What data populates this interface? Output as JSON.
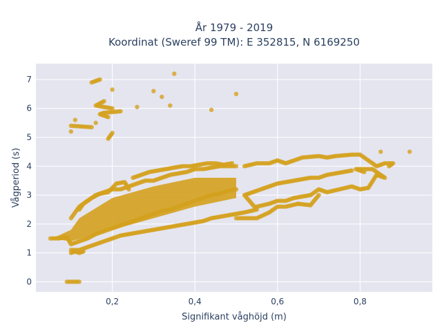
{
  "chart_data": {
    "type": "scatter",
    "title": "År 1979 - 2019",
    "subtitle": "Koordinat (Sweref 99 TM): E 352815, N 6169250",
    "xlabel": "Signifikant våghöjd (m)",
    "ylabel": "Vågperiod (s)",
    "xlim": [
      0.015,
      0.975
    ],
    "ylim": [
      -0.35,
      7.55
    ],
    "x_ticks": [
      0.2,
      0.4,
      0.6,
      0.8
    ],
    "x_tick_labels": [
      "0,2",
      "0,4",
      "0,6",
      "0,8"
    ],
    "y_ticks": [
      0,
      1,
      2,
      3,
      4,
      5,
      6,
      7
    ],
    "y_tick_labels": [
      "0",
      "1",
      "2",
      "3",
      "4",
      "5",
      "6",
      "7"
    ],
    "grid": true,
    "colors": {
      "marker": "#d4a11e",
      "plot_bg": "#e5e5f0",
      "grid": "#ffffff"
    },
    "series": [
      {
        "points": [
          [
            0.05,
            1.5
          ],
          [
            0.07,
            1.5
          ],
          [
            0.09,
            1.55
          ],
          [
            0.1,
            1.3
          ],
          [
            0.12,
            1.4
          ],
          [
            0.14,
            1.5
          ],
          [
            0.16,
            1.65
          ],
          [
            0.18,
            1.75
          ],
          [
            0.2,
            1.85
          ],
          [
            0.22,
            1.95
          ],
          [
            0.24,
            2.05
          ],
          [
            0.26,
            2.15
          ],
          [
            0.28,
            2.25
          ],
          [
            0.3,
            2.35
          ],
          [
            0.32,
            2.45
          ],
          [
            0.34,
            2.5
          ],
          [
            0.36,
            2.6
          ],
          [
            0.38,
            2.7
          ],
          [
            0.4,
            2.8
          ],
          [
            0.42,
            2.9
          ],
          [
            0.44,
            3.0
          ],
          [
            0.46,
            3.05
          ],
          [
            0.48,
            3.15
          ],
          [
            0.5,
            3.2
          ],
          [
            0.1,
            2.2
          ],
          [
            0.12,
            2.6
          ],
          [
            0.14,
            2.8
          ],
          [
            0.16,
            3.0
          ],
          [
            0.18,
            3.1
          ],
          [
            0.2,
            3.2
          ],
          [
            0.22,
            3.2
          ],
          [
            0.24,
            3.3
          ],
          [
            0.26,
            3.4
          ],
          [
            0.28,
            3.5
          ],
          [
            0.3,
            3.5
          ],
          [
            0.32,
            3.6
          ],
          [
            0.34,
            3.7
          ],
          [
            0.36,
            3.75
          ],
          [
            0.38,
            3.8
          ],
          [
            0.4,
            3.9
          ],
          [
            0.42,
            3.9
          ],
          [
            0.44,
            3.95
          ],
          [
            0.46,
            4.0
          ],
          [
            0.48,
            4.0
          ],
          [
            0.5,
            4.0
          ],
          [
            0.1,
            1.1
          ],
          [
            0.12,
            1.1
          ],
          [
            0.14,
            1.2
          ],
          [
            0.16,
            1.3
          ],
          [
            0.18,
            1.4
          ],
          [
            0.2,
            1.5
          ],
          [
            0.22,
            1.6
          ],
          [
            0.24,
            1.65
          ],
          [
            0.26,
            1.7
          ],
          [
            0.28,
            1.75
          ],
          [
            0.3,
            1.8
          ],
          [
            0.32,
            1.85
          ],
          [
            0.34,
            1.9
          ],
          [
            0.36,
            1.95
          ],
          [
            0.38,
            2.0
          ],
          [
            0.4,
            2.05
          ],
          [
            0.42,
            2.1
          ],
          [
            0.44,
            2.2
          ],
          [
            0.46,
            2.25
          ],
          [
            0.48,
            2.3
          ],
          [
            0.5,
            2.35
          ],
          [
            0.52,
            2.4
          ],
          [
            0.55,
            2.5
          ],
          [
            0.52,
            3.0
          ],
          [
            0.54,
            3.1
          ],
          [
            0.56,
            3.2
          ],
          [
            0.58,
            3.3
          ],
          [
            0.6,
            3.4
          ],
          [
            0.62,
            3.45
          ],
          [
            0.64,
            3.5
          ],
          [
            0.66,
            3.55
          ],
          [
            0.68,
            3.6
          ],
          [
            0.7,
            3.6
          ],
          [
            0.72,
            3.7
          ],
          [
            0.74,
            3.75
          ],
          [
            0.76,
            3.8
          ],
          [
            0.78,
            3.85
          ],
          [
            0.52,
            4.0
          ],
          [
            0.55,
            4.1
          ],
          [
            0.58,
            4.1
          ],
          [
            0.6,
            4.2
          ],
          [
            0.62,
            4.1
          ],
          [
            0.64,
            4.2
          ],
          [
            0.66,
            4.3
          ],
          [
            0.7,
            4.35
          ],
          [
            0.72,
            4.3
          ],
          [
            0.74,
            4.35
          ],
          [
            0.78,
            4.4
          ],
          [
            0.8,
            4.4
          ],
          [
            0.82,
            4.2
          ],
          [
            0.84,
            4.0
          ],
          [
            0.86,
            4.1
          ],
          [
            0.88,
            4.1
          ],
          [
            0.87,
            4.0
          ],
          [
            0.92,
            4.5
          ],
          [
            0.85,
            4.5
          ],
          [
            0.55,
            2.6
          ],
          [
            0.58,
            2.7
          ],
          [
            0.6,
            2.8
          ],
          [
            0.62,
            2.8
          ],
          [
            0.64,
            2.9
          ],
          [
            0.66,
            2.95
          ],
          [
            0.68,
            3.0
          ],
          [
            0.7,
            3.2
          ],
          [
            0.72,
            3.1
          ],
          [
            0.75,
            3.2
          ],
          [
            0.78,
            3.3
          ],
          [
            0.8,
            3.2
          ],
          [
            0.82,
            3.25
          ],
          [
            0.84,
            3.7
          ],
          [
            0.86,
            3.6
          ],
          [
            0.83,
            3.9
          ],
          [
            0.79,
            3.9
          ],
          [
            0.81,
            3.8
          ],
          [
            0.5,
            2.2
          ],
          [
            0.52,
            2.2
          ],
          [
            0.55,
            2.2
          ],
          [
            0.58,
            2.4
          ],
          [
            0.6,
            2.6
          ],
          [
            0.62,
            2.6
          ],
          [
            0.65,
            2.7
          ],
          [
            0.68,
            2.65
          ],
          [
            0.7,
            3.0
          ],
          [
            0.65,
            2.7
          ],
          [
            0.25,
            3.6
          ],
          [
            0.27,
            3.7
          ],
          [
            0.29,
            3.8
          ],
          [
            0.31,
            3.85
          ],
          [
            0.33,
            3.9
          ],
          [
            0.35,
            3.95
          ],
          [
            0.37,
            4.0
          ],
          [
            0.39,
            4.0
          ],
          [
            0.41,
            4.05
          ],
          [
            0.43,
            4.1
          ],
          [
            0.45,
            4.1
          ],
          [
            0.47,
            4.05
          ],
          [
            0.49,
            4.1
          ],
          [
            0.12,
            2.5
          ],
          [
            0.13,
            2.7
          ],
          [
            0.15,
            2.9
          ],
          [
            0.17,
            3.05
          ],
          [
            0.19,
            3.1
          ],
          [
            0.21,
            3.4
          ],
          [
            0.23,
            3.45
          ],
          [
            0.24,
            3.2
          ],
          [
            0.1,
            1.0
          ],
          [
            0.11,
            1.05
          ],
          [
            0.12,
            1.0
          ],
          [
            0.13,
            1.05
          ],
          [
            0.09,
            0.0
          ],
          [
            0.1,
            0.0
          ],
          [
            0.11,
            0.0
          ],
          [
            0.12,
            0.0
          ],
          [
            0.17,
            7.0
          ],
          [
            0.15,
            6.9
          ],
          [
            0.35,
            7.2
          ],
          [
            0.2,
            6.65
          ],
          [
            0.3,
            6.6
          ],
          [
            0.5,
            6.5
          ],
          [
            0.32,
            6.4
          ],
          [
            0.18,
            6.25
          ],
          [
            0.16,
            6.1
          ],
          [
            0.2,
            6.0
          ],
          [
            0.26,
            6.05
          ],
          [
            0.34,
            6.1
          ],
          [
            0.44,
            5.95
          ],
          [
            0.22,
            5.9
          ],
          [
            0.18,
            5.85
          ],
          [
            0.17,
            5.8
          ],
          [
            0.19,
            5.7
          ],
          [
            0.11,
            5.6
          ],
          [
            0.16,
            5.5
          ],
          [
            0.1,
            5.4
          ],
          [
            0.15,
            5.35
          ],
          [
            0.1,
            5.2
          ],
          [
            0.2,
            5.15
          ],
          [
            0.19,
            4.95
          ]
        ]
      }
    ]
  }
}
